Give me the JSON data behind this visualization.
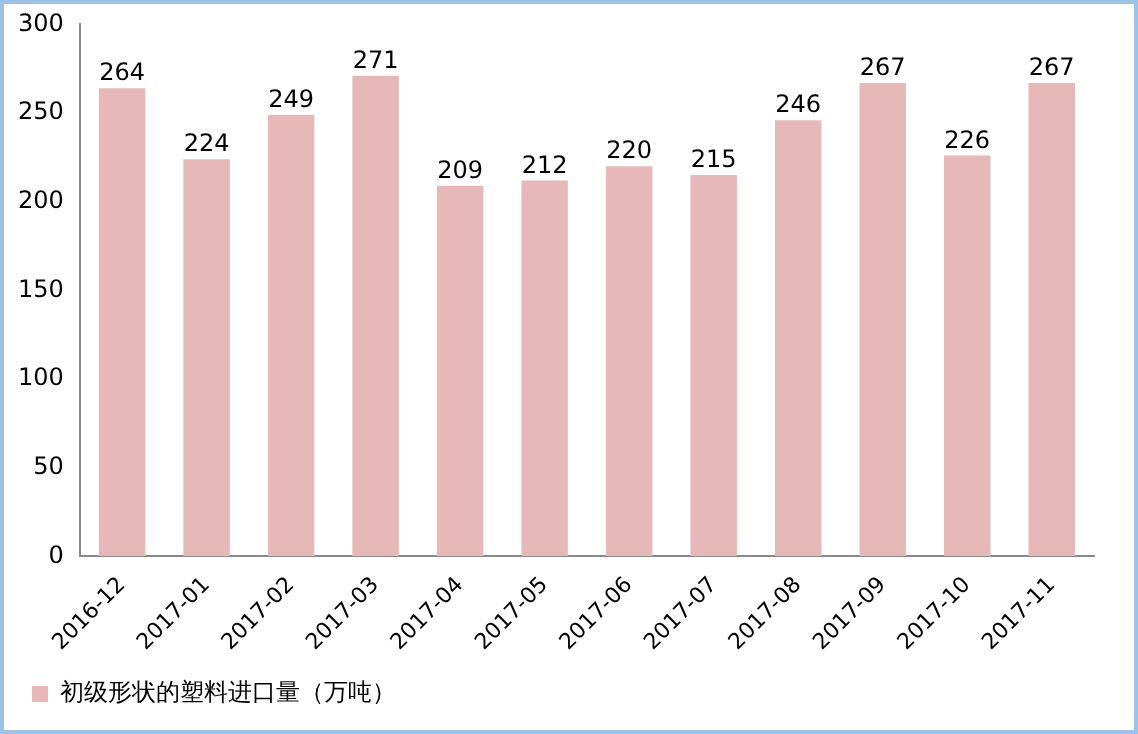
{
  "chart_data": {
    "type": "bar",
    "categories": [
      "2016-12",
      "2017-01",
      "2017-02",
      "2017-03",
      "2017-04",
      "2017-05",
      "2017-06",
      "2017-07",
      "2017-08",
      "2017-09",
      "2017-10",
      "2017-11"
    ],
    "series": [
      {
        "name": "初级形状的塑料进口量（万吨）",
        "color": "#e6b9b8",
        "values": [
          264,
          224,
          249,
          271,
          209,
          212,
          220,
          215,
          246,
          267,
          226,
          267
        ]
      }
    ],
    "ylim": [
      0,
      300
    ],
    "yticks": [
      0,
      50,
      100,
      150,
      200,
      250,
      300
    ],
    "grid": false,
    "legend": "bottom left",
    "data_labels": true
  }
}
